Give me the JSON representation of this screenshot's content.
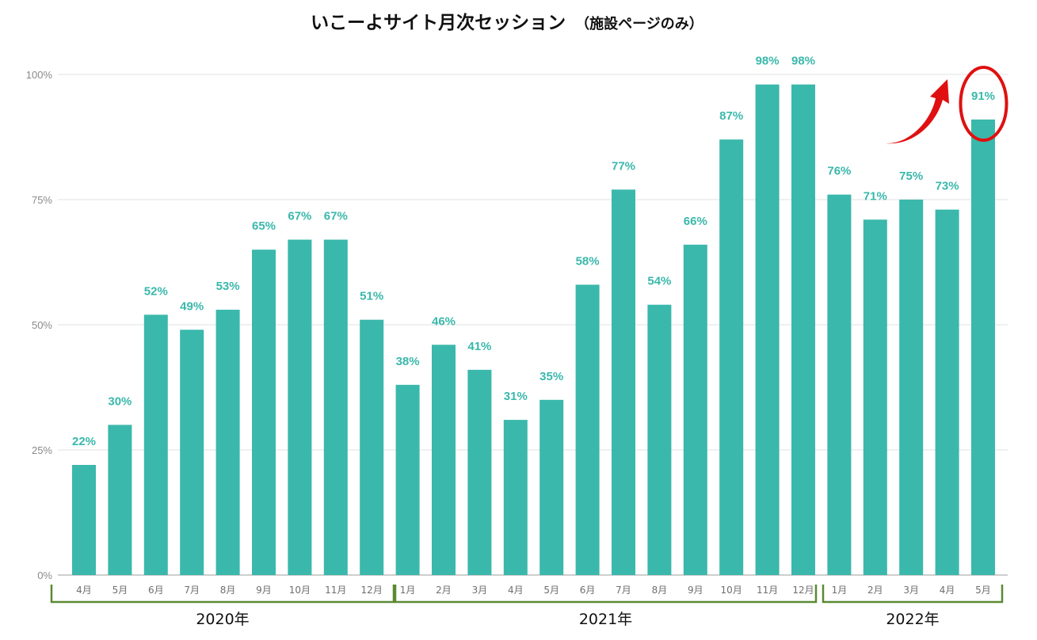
{
  "chart_data": {
    "type": "bar",
    "title": "いこーよサイト月次セッション",
    "subtitle": "（施設ページのみ）",
    "categories": [
      "4月",
      "5月",
      "6月",
      "7月",
      "8月",
      "9月",
      "10月",
      "11月",
      "12月",
      "1月",
      "2月",
      "3月",
      "4月",
      "5月",
      "6月",
      "7月",
      "8月",
      "9月",
      "10月",
      "11月",
      "12月",
      "1月",
      "2月",
      "3月",
      "4月",
      "5月"
    ],
    "values": [
      22,
      30,
      52,
      49,
      53,
      65,
      67,
      67,
      51,
      38,
      46,
      41,
      31,
      35,
      58,
      77,
      54,
      66,
      87,
      98,
      98,
      76,
      71,
      75,
      73,
      91
    ],
    "data_labels": [
      "22%",
      "30%",
      "52%",
      "49%",
      "53%",
      "65%",
      "67%",
      "67%",
      "51%",
      "38%",
      "46%",
      "41%",
      "31%",
      "35%",
      "58%",
      "77%",
      "54%",
      "66%",
      "87%",
      "98%",
      "98%",
      "76%",
      "71%",
      "75%",
      "73%",
      "91%"
    ],
    "ylim": [
      0,
      100
    ],
    "yticks": [
      0,
      25,
      50,
      75,
      100
    ],
    "ytick_labels": [
      "0%",
      "25%",
      "50%",
      "75%",
      "100%"
    ],
    "grid": true,
    "year_groups": [
      {
        "label": "2020年",
        "start": 0,
        "end": 8
      },
      {
        "label": "2021年",
        "start": 9,
        "end": 20
      },
      {
        "label": "2022年",
        "start": 21,
        "end": 25
      }
    ],
    "highlight": {
      "index": 25,
      "marker": "circle-and-arrow"
    },
    "colors": {
      "bar": "#3ab8ab",
      "data_label": "#3ab8ab",
      "grid": "#e0e0e0",
      "bracket": "#5a8a32",
      "highlight": "#e01010"
    }
  }
}
